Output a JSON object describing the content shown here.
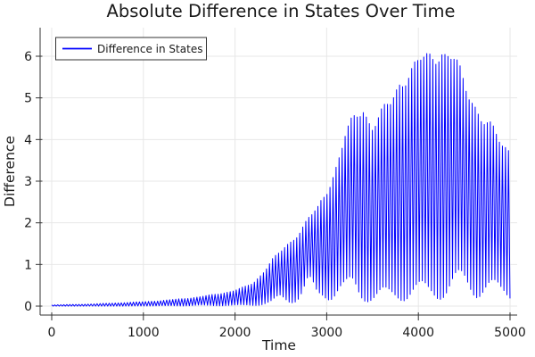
{
  "chart_data": {
    "type": "line",
    "title": "Absolute Difference in States Over Time",
    "xlabel": "Time",
    "ylabel": "Difference",
    "grid": true,
    "legend": {
      "position": "top-left",
      "entries": [
        {
          "label": "Difference in States",
          "color": "#0000ff"
        }
      ]
    },
    "x_ticks": [
      0,
      1000,
      2000,
      3000,
      4000,
      5000
    ],
    "y_ticks": [
      0,
      1,
      2,
      3,
      4,
      5,
      6
    ],
    "xlim": [
      -130,
      5080
    ],
    "ylim": [
      -0.21,
      6.65
    ],
    "style": {
      "series_color": "#0000ff",
      "grid_color": "#e7e7e7",
      "axis_color": "#333333",
      "text_color": "#1a1a1a",
      "background": "#ffffff"
    },
    "series": [
      {
        "name": "Difference in States",
        "color": "#0000ff",
        "line_width": 1,
        "description": "Absolute difference between two chaotic trajectories: a rapid oscillation (period ~33 time units) whose amplitude grows exponentially from ~0 until t~2200, bursts upward to a maximum of ~6.5 near t~4250, then decays to ~4.0 at t=5000. Values oscillate between the lower and upper envelopes sampled below.",
        "oscillation_period": 33,
        "envelope_t": [
          0,
          200,
          400,
          600,
          800,
          1000,
          1200,
          1400,
          1600,
          1800,
          2000,
          2100,
          2200,
          2300,
          2400,
          2500,
          2600,
          2700,
          2800,
          2900,
          3000,
          3100,
          3200,
          3300,
          3400,
          3500,
          3600,
          3700,
          3800,
          3900,
          4000,
          4100,
          4200,
          4250,
          4300,
          4400,
          4500,
          4600,
          4700,
          4800,
          4900,
          5000
        ],
        "upper_envelope": [
          0.03,
          0.04,
          0.05,
          0.07,
          0.09,
          0.11,
          0.14,
          0.18,
          0.23,
          0.3,
          0.4,
          0.47,
          0.58,
          0.85,
          1.15,
          1.35,
          1.6,
          1.9,
          2.2,
          2.4,
          2.9,
          3.55,
          4.25,
          4.65,
          5.0,
          4.6,
          4.8,
          5.05,
          5.7,
          5.95,
          6.05,
          6.2,
          6.4,
          6.55,
          6.35,
          6.1,
          5.55,
          5.25,
          4.7,
          4.4,
          4.1,
          4.0
        ],
        "lower_envelope": [
          0.0,
          0.0,
          0.0,
          0.0,
          0.0,
          0.01,
          0.01,
          0.01,
          0.02,
          0.02,
          0.03,
          0.04,
          0.06,
          0.1,
          0.15,
          0.3,
          0.25,
          0.4,
          0.6,
          0.3,
          0.45,
          0.6,
          0.55,
          0.7,
          0.5,
          0.45,
          0.5,
          0.45,
          0.5,
          0.55,
          0.5,
          0.45,
          0.5,
          0.55,
          0.55,
          0.65,
          0.75,
          0.85,
          0.8,
          0.7,
          0.6,
          0.65
        ]
      }
    ]
  }
}
